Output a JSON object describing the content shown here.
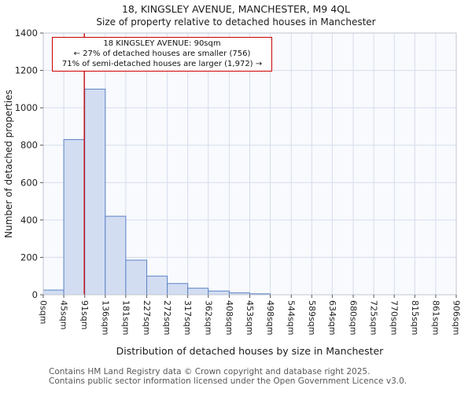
{
  "annotation": {
    "line1": "18 KINGSLEY AVENUE: 90sqm",
    "line2": "← 27% of detached houses are smaller (756)",
    "line3": "71% of semi-detached houses are larger (1,972) →"
  },
  "footer": {
    "line1": "Contains HM Land Registry data © Crown copyright and database right 2025.",
    "line2": "Contains public sector information licensed under the Open Government Licence v3.0."
  },
  "chart_data": {
    "type": "bar",
    "title": "18, KINGSLEY AVENUE, MANCHESTER, M9 4QL",
    "subtitle": "Size of property relative to detached houses in Manchester",
    "xlabel": "Distribution of detached houses by size in Manchester",
    "ylabel": "Number of detached properties",
    "bin_edges": [
      0,
      45,
      91,
      136,
      181,
      227,
      272,
      317,
      362,
      408,
      453,
      498,
      544,
      589,
      634,
      680,
      725,
      770,
      815,
      861,
      906
    ],
    "x_tick_labels": [
      "0sqm",
      "45sqm",
      "91sqm",
      "136sqm",
      "181sqm",
      "227sqm",
      "272sqm",
      "317sqm",
      "362sqm",
      "408sqm",
      "453sqm",
      "498sqm",
      "544sqm",
      "589sqm",
      "634sqm",
      "680sqm",
      "725sqm",
      "770sqm",
      "815sqm",
      "861sqm",
      "906sqm"
    ],
    "values": [
      25,
      830,
      1100,
      420,
      185,
      100,
      60,
      35,
      20,
      10,
      5,
      0,
      0,
      0,
      0,
      0,
      0,
      0,
      0,
      0
    ],
    "ylim": [
      0,
      1400
    ],
    "y_ticks": [
      0,
      200,
      400,
      600,
      800,
      1000,
      1200,
      1400
    ],
    "marker_sqm": 90,
    "grid": true,
    "colors": {
      "bar_fill": "#d3ddf2",
      "bar_stroke": "#5b83c4",
      "marker": "#cc0000",
      "grid": "#d6ddeb",
      "plot_bg": "#f8fafd",
      "axis": "#c0c6d0",
      "annotation_border": "#cc0000"
    }
  }
}
